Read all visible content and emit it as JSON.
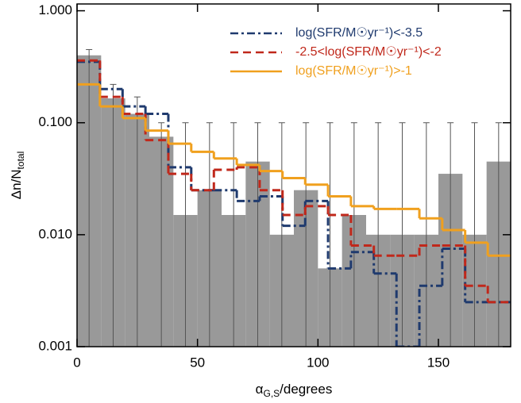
{
  "chart_data": {
    "type": "histogram",
    "log_y": true,
    "bins": [
      0,
      10,
      20,
      30,
      40,
      50,
      60,
      70,
      80,
      90,
      100,
      110,
      120,
      130,
      140,
      150,
      160,
      170,
      180
    ],
    "values": [
      0.4,
      0.165,
      0.12,
      0.075,
      0.015,
      0.025,
      0.015,
      0.045,
      0.01,
      0.025,
      0.005,
      0.015,
      0.01,
      0.01,
      0.01,
      0.035,
      0.01,
      0.045
    ],
    "err_high": [
      0.45,
      0.22,
      0.17,
      0.1,
      0.1,
      0.1,
      0.1,
      0.1,
      0.1,
      0.1,
      0.1,
      0.1,
      0.1,
      0.1,
      0.1,
      0.1,
      0.1,
      0.1
    ],
    "color": "#999999",
    "step_edges": [
      0,
      9.5,
      18.9,
      28.4,
      37.9,
      47.4,
      56.8,
      66.3,
      75.8,
      85.3,
      94.7,
      104.2,
      113.7,
      123.2,
      132.6,
      142.1,
      151.6,
      161.1,
      170.5,
      180
    ],
    "series": [
      {
        "name": "log(SFR/M☉yr⁻¹)<-3.5",
        "color": "#1f3a6e",
        "style": "dashdot",
        "values": [
          0.35,
          0.2,
          0.14,
          0.12,
          0.04,
          0.025,
          0.025,
          0.02,
          0.022,
          0.012,
          0.02,
          0.005,
          0.007,
          0.0045,
          0.001,
          0.0035,
          0.0075,
          0.0025,
          0.0025
        ]
      },
      {
        "name": "-2.5<log(SFR/M☉yr⁻¹)<-2",
        "color": "#c0281b",
        "style": "dashed",
        "values": [
          0.36,
          0.17,
          0.12,
          0.07,
          0.035,
          0.025,
          0.038,
          0.04,
          0.025,
          0.015,
          0.018,
          0.015,
          0.008,
          0.0065,
          0.0065,
          0.008,
          0.008,
          0.0035,
          0.0025
        ]
      },
      {
        "name": "log(SFR/M☉yr⁻¹)>-1",
        "color": "#f0a01e",
        "style": "solid",
        "values": [
          0.22,
          0.14,
          0.11,
          0.085,
          0.065,
          0.055,
          0.048,
          0.042,
          0.037,
          0.032,
          0.028,
          0.022,
          0.018,
          0.017,
          0.017,
          0.014,
          0.011,
          0.0085,
          0.0065
        ]
      }
    ],
    "xlim": [
      0,
      180
    ],
    "xticks": [
      0,
      50,
      100,
      150
    ],
    "ylim": [
      0.001,
      1.15
    ],
    "yticks": [
      {
        "value": 0.001,
        "label": "0.001"
      },
      {
        "value": 0.01,
        "label": "0.010"
      },
      {
        "value": 0.1,
        "label": "0.100"
      },
      {
        "value": 1,
        "label": "1.000"
      }
    ],
    "xlabel": {
      "text": "α",
      "sub": "G,S",
      "suffix": "/degrees"
    },
    "ylabel": {
      "text": "Δn/N",
      "sub": "total"
    }
  }
}
